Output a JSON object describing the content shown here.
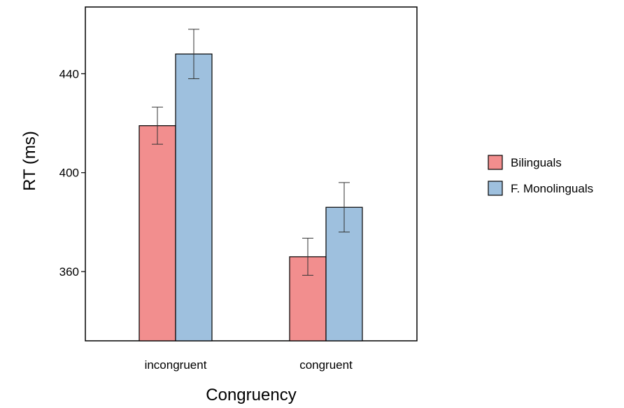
{
  "chart_data": {
    "type": "bar",
    "xlabel": "Congruency",
    "ylabel": "RT (ms)",
    "categories": [
      "incongruent",
      "congruent"
    ],
    "yticks": [
      360,
      400,
      440
    ],
    "ylim": [
      332,
      467
    ],
    "legend_position": "right",
    "grid": false,
    "series": [
      {
        "name": "Bilinguals",
        "color": "#f28e8e",
        "values": [
          419,
          366
        ],
        "error": [
          7.5,
          7.5
        ]
      },
      {
        "name": "F. Monolinguals",
        "color": "#9ec0de",
        "values": [
          448,
          386
        ],
        "error": [
          10,
          10
        ]
      }
    ]
  }
}
